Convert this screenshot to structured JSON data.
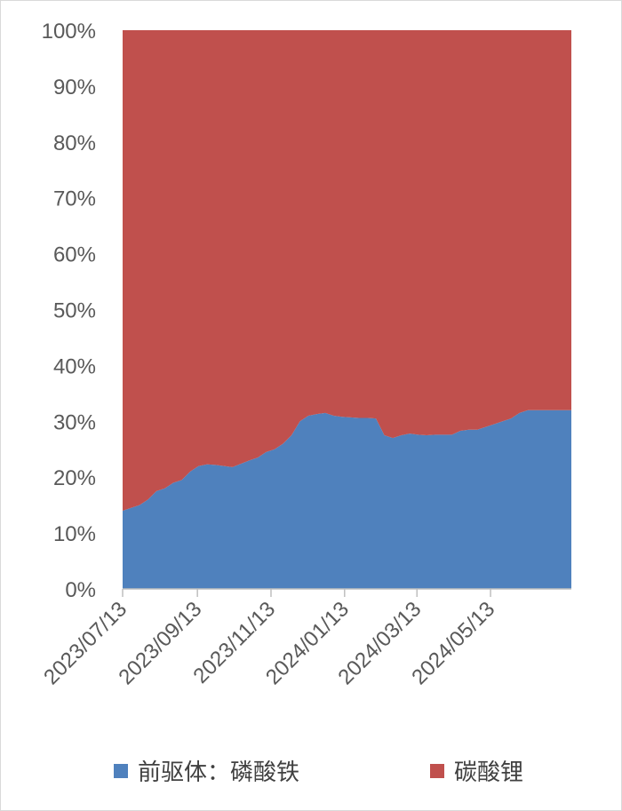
{
  "chart_data": {
    "type": "area",
    "stacked": "percent",
    "title": "",
    "xlabel": "",
    "ylabel": "",
    "ylim": [
      0,
      100
    ],
    "y_ticks": [
      "0%",
      "10%",
      "20%",
      "30%",
      "40%",
      "50%",
      "60%",
      "70%",
      "80%",
      "90%",
      "100%"
    ],
    "x_ticks": [
      "2023/07/13",
      "2023/09/13",
      "2023/11/13",
      "2024/01/13",
      "2024/03/13",
      "2024/05/13"
    ],
    "x_range": [
      "2023/07/13",
      "2024/07/19"
    ],
    "grid": false,
    "legend_position": "bottom",
    "x": [
      "2023/07/13",
      "2023/07/20",
      "2023/07/27",
      "2023/08/03",
      "2023/08/10",
      "2023/08/17",
      "2023/08/24",
      "2023/08/31",
      "2023/09/07",
      "2023/09/14",
      "2023/09/21",
      "2023/09/28",
      "2023/10/05",
      "2023/10/12",
      "2023/10/19",
      "2023/10/26",
      "2023/11/02",
      "2023/11/09",
      "2023/11/16",
      "2023/11/23",
      "2023/11/30",
      "2023/12/07",
      "2023/12/14",
      "2023/12/21",
      "2023/12/28",
      "2024/01/04",
      "2024/01/11",
      "2024/01/18",
      "2024/01/25",
      "2024/02/01",
      "2024/02/08",
      "2024/02/15",
      "2024/02/22",
      "2024/02/29",
      "2024/03/07",
      "2024/03/14",
      "2024/03/21",
      "2024/03/28",
      "2024/04/04",
      "2024/04/11",
      "2024/04/18",
      "2024/04/25",
      "2024/05/02",
      "2024/05/09",
      "2024/05/16",
      "2024/05/23",
      "2024/05/30",
      "2024/06/06",
      "2024/06/13",
      "2024/06/20",
      "2024/06/27",
      "2024/07/04",
      "2024/07/11",
      "2024/07/19"
    ],
    "series": [
      {
        "name": "前驱体：磷酸铁",
        "color": "#4f81bd",
        "values": [
          14.0,
          14.5,
          15.0,
          16.0,
          17.5,
          18.0,
          19.0,
          19.5,
          21.0,
          22.0,
          22.3,
          22.2,
          22.0,
          21.8,
          22.4,
          23.0,
          23.5,
          24.5,
          25.0,
          26.0,
          27.5,
          30.0,
          31.0,
          31.3,
          31.5,
          31.0,
          30.8,
          30.7,
          30.6,
          30.6,
          30.5,
          27.5,
          27.0,
          27.5,
          27.8,
          27.6,
          27.5,
          27.6,
          27.6,
          27.6,
          28.3,
          28.5,
          28.5,
          29.0,
          29.5,
          30.0,
          30.5,
          31.5,
          32.0,
          32.0,
          32.0,
          32.0,
          32.0,
          32.0
        ]
      },
      {
        "name": "碳酸锂",
        "color": "#c0504d",
        "values": [
          86.0,
          85.5,
          85.0,
          84.0,
          82.5,
          82.0,
          81.0,
          80.5,
          79.0,
          78.0,
          77.7,
          77.8,
          78.0,
          78.2,
          77.6,
          77.0,
          76.5,
          75.5,
          75.0,
          74.0,
          72.5,
          70.0,
          69.0,
          68.7,
          68.5,
          69.0,
          69.2,
          69.3,
          69.4,
          69.4,
          69.5,
          72.5,
          73.0,
          72.5,
          72.2,
          72.4,
          72.5,
          72.4,
          72.4,
          72.4,
          71.7,
          71.5,
          71.5,
          71.0,
          70.5,
          70.0,
          69.5,
          68.5,
          68.0,
          68.0,
          68.0,
          68.0,
          68.0,
          68.0
        ]
      }
    ]
  }
}
